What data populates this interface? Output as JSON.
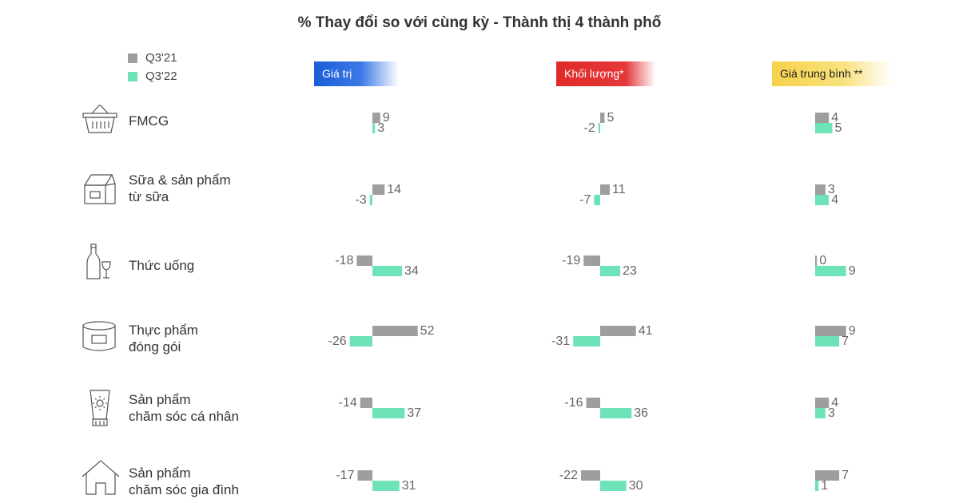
{
  "colors": {
    "q3_21": "#9e9e9e",
    "q3_22": "#6ee3b8",
    "text": "#333333",
    "value_text": "#666666"
  },
  "chart_data": {
    "type": "bar",
    "title": "% Thay đổi so với cùng kỳ - Thành thị 4 thành phố",
    "legend": {
      "position": "top-left",
      "entries": [
        "Q3'21",
        "Q3'22"
      ]
    },
    "panels": [
      {
        "name": "Giá trị",
        "header_color": "#1a5ed8"
      },
      {
        "name": "Khối lượng*",
        "header_color": "#e02a2a"
      },
      {
        "name": "Giá trung bình **",
        "header_color": "#f6d24a"
      }
    ],
    "categories": [
      {
        "lines": [
          "FMCG"
        ],
        "icon": "basket-icon"
      },
      {
        "lines": [
          "Sữa & sản phẩm",
          "từ sữa"
        ],
        "icon": "milk-carton-icon"
      },
      {
        "lines": [
          "Thức uống"
        ],
        "icon": "wine-bottle-glass-icon"
      },
      {
        "lines": [
          "Thực phẩm",
          "đóng gói"
        ],
        "icon": "food-can-icon"
      },
      {
        "lines": [
          "Sản phẩm",
          "chăm sóc cá nhân"
        ],
        "icon": "lotion-tube-icon"
      },
      {
        "lines": [
          "Sản phẩm",
          "chăm sóc gia đình"
        ],
        "icon": "house-icon"
      }
    ],
    "series": [
      {
        "name": "Q3'21",
        "values": [
          [
            9,
            5,
            4
          ],
          [
            14,
            11,
            3
          ],
          [
            -18,
            -19,
            0
          ],
          [
            52,
            41,
            9
          ],
          [
            -14,
            -16,
            4
          ],
          [
            -17,
            -22,
            7
          ]
        ]
      },
      {
        "name": "Q3'22",
        "values": [
          [
            3,
            -2,
            5
          ],
          [
            -3,
            -7,
            4
          ],
          [
            34,
            23,
            9
          ],
          [
            -26,
            -31,
            7
          ],
          [
            37,
            36,
            3
          ],
          [
            31,
            30,
            1
          ]
        ]
      }
    ]
  }
}
